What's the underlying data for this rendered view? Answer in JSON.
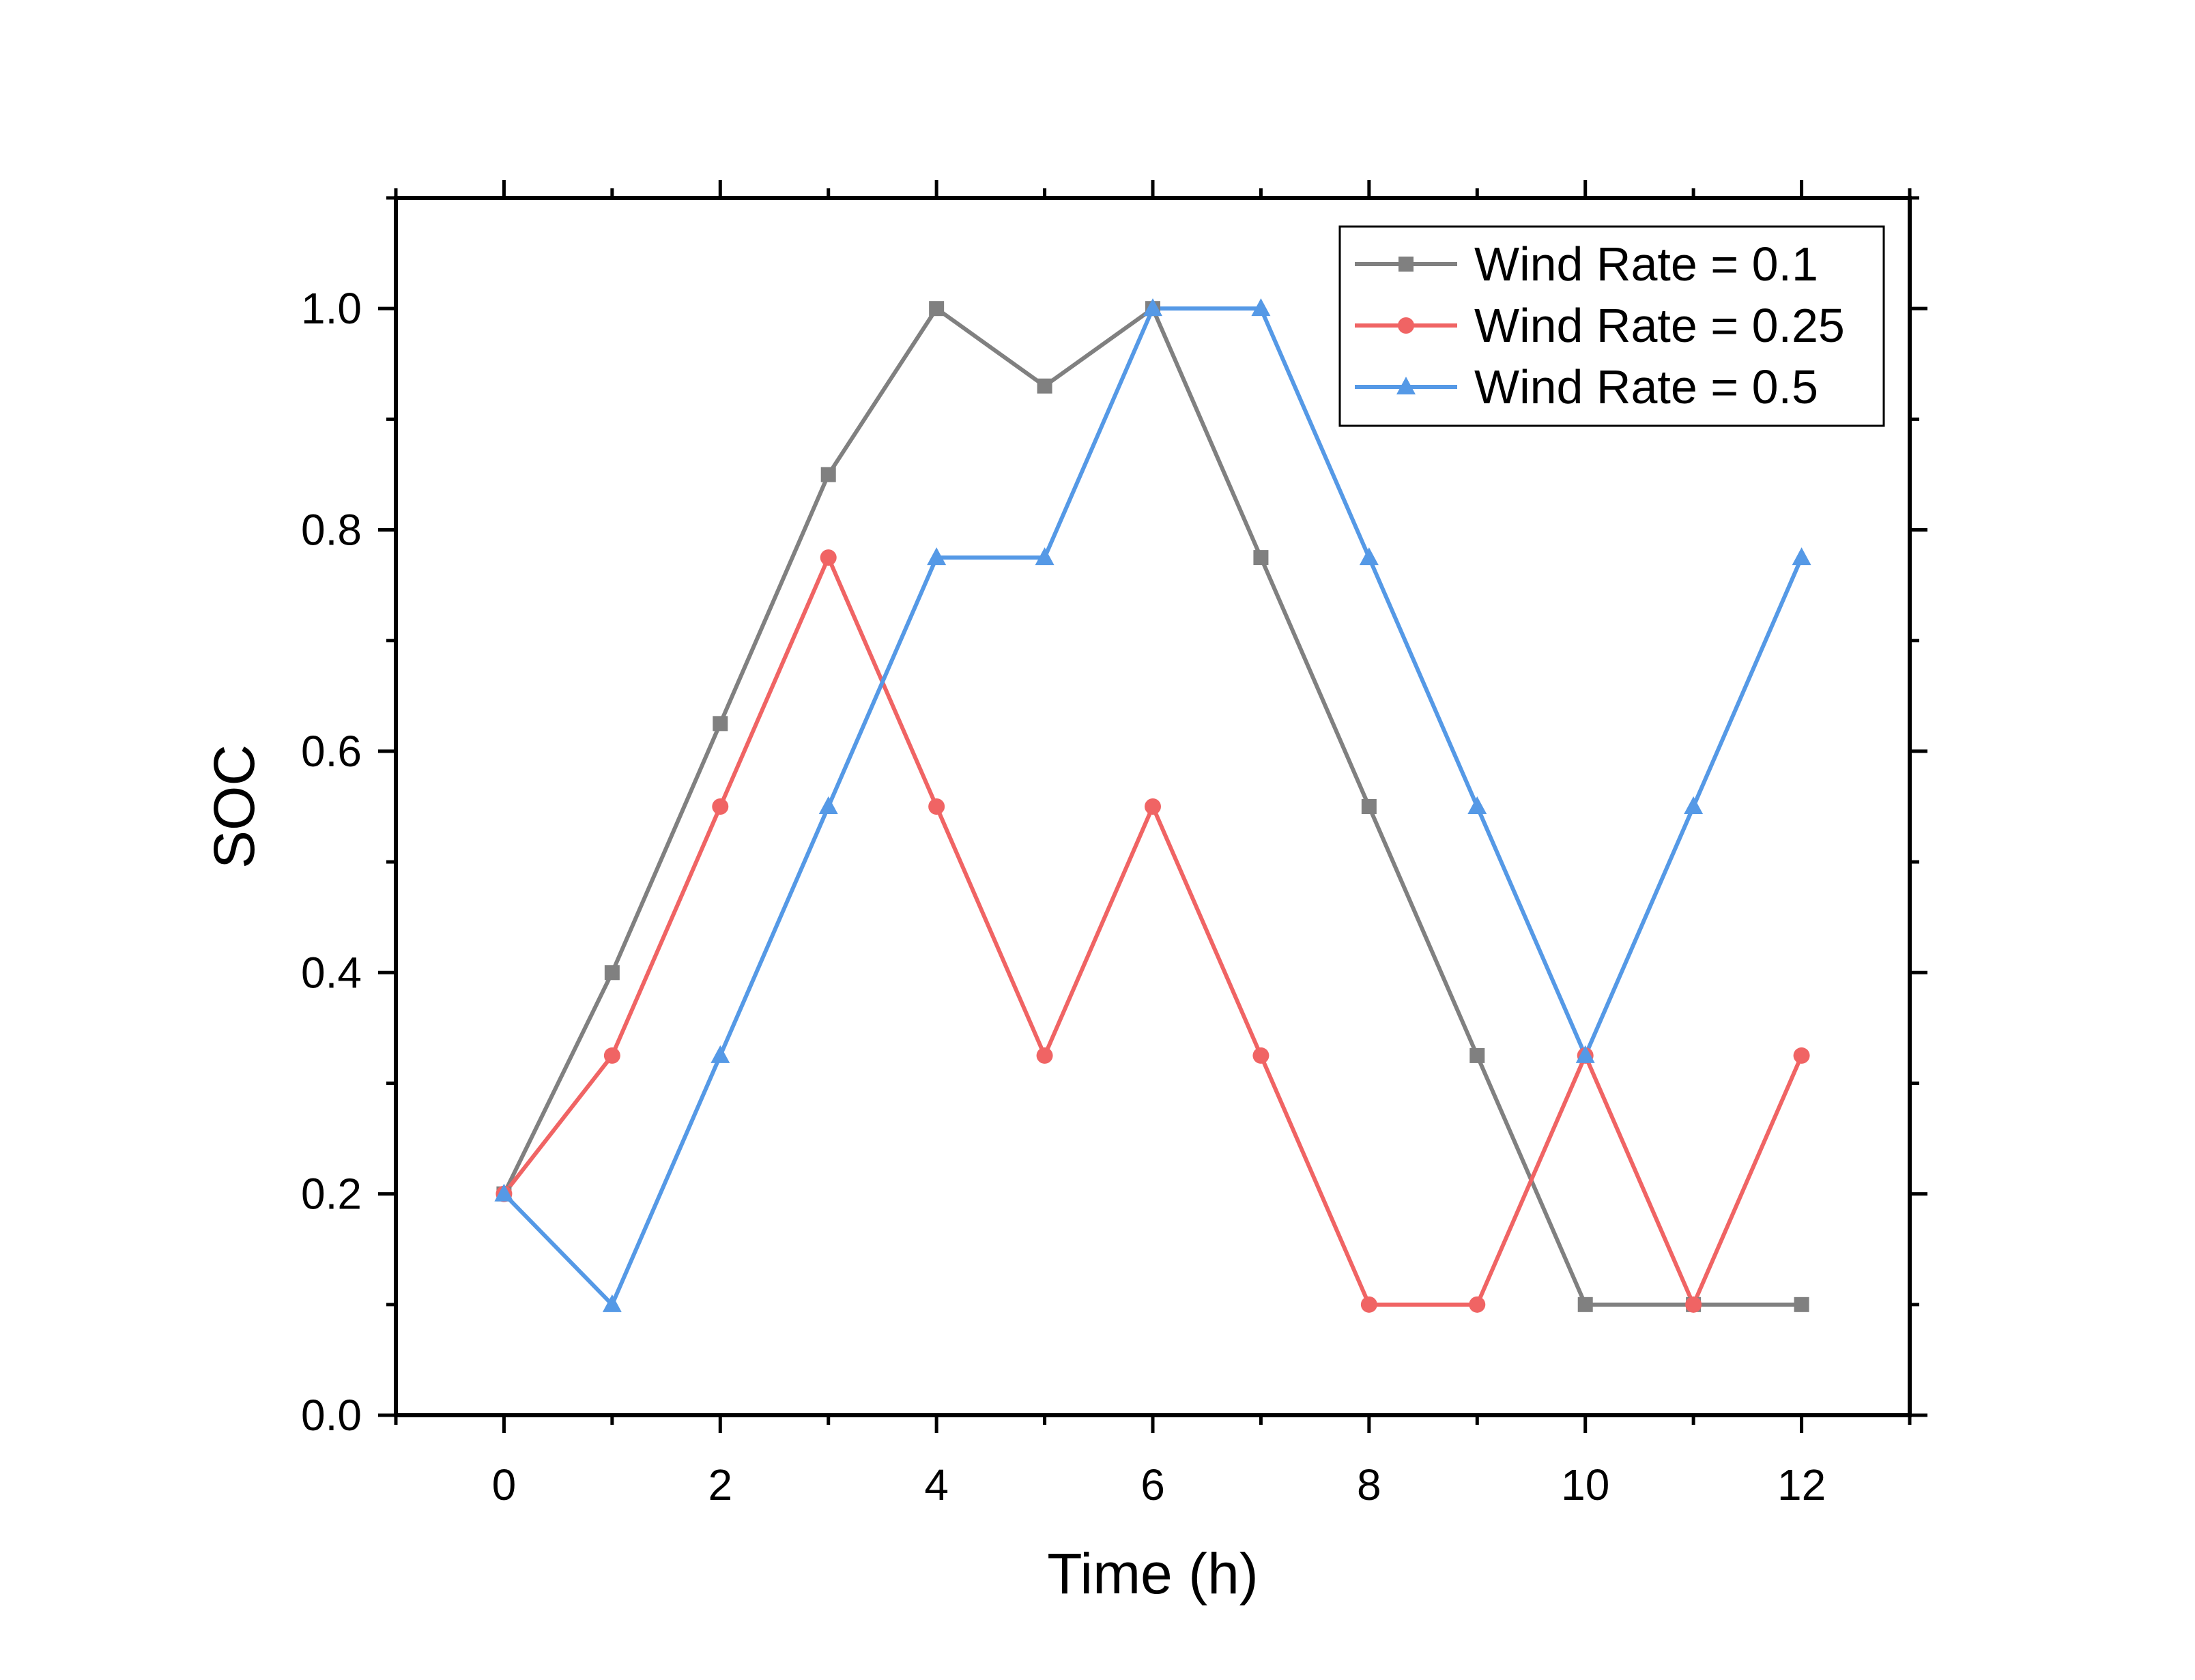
{
  "chart_data": {
    "type": "line",
    "title": "",
    "xlabel": "Time (h)",
    "ylabel": "SOC",
    "xlim": [
      -1,
      13
    ],
    "ylim": [
      0,
      1.1
    ],
    "xticks": [
      0,
      2,
      4,
      6,
      8,
      10,
      12
    ],
    "yticks": [
      0.0,
      0.2,
      0.4,
      0.6,
      0.8,
      1.0
    ],
    "xtick_labels": [
      "0",
      "2",
      "4",
      "6",
      "8",
      "10",
      "12"
    ],
    "ytick_labels": [
      "0.0",
      "0.2",
      "0.4",
      "0.6",
      "0.8",
      "1.0"
    ],
    "grid": false,
    "legend_position": "top-right",
    "x": [
      0,
      1,
      2,
      3,
      4,
      5,
      6,
      7,
      8,
      9,
      10,
      11,
      12
    ],
    "series": [
      {
        "name": "Wind Rate = 0.1",
        "color": "#808080",
        "marker": "square",
        "values": [
          0.2,
          0.4,
          0.625,
          0.85,
          1.0,
          0.93,
          1.0,
          0.775,
          0.55,
          0.325,
          0.1,
          0.1,
          0.1
        ]
      },
      {
        "name": "Wind Rate = 0.25",
        "color": "#f06464",
        "marker": "circle",
        "values": [
          0.2,
          0.325,
          0.55,
          0.775,
          0.55,
          0.325,
          0.55,
          0.325,
          0.1,
          0.1,
          0.325,
          0.1,
          0.325
        ]
      },
      {
        "name": "Wind Rate = 0.5",
        "color": "#5599e6",
        "marker": "triangle",
        "values": [
          0.2,
          0.1,
          0.325,
          0.55,
          0.775,
          0.775,
          1.0,
          1.0,
          0.775,
          0.55,
          0.325,
          0.55,
          0.775
        ]
      }
    ]
  }
}
